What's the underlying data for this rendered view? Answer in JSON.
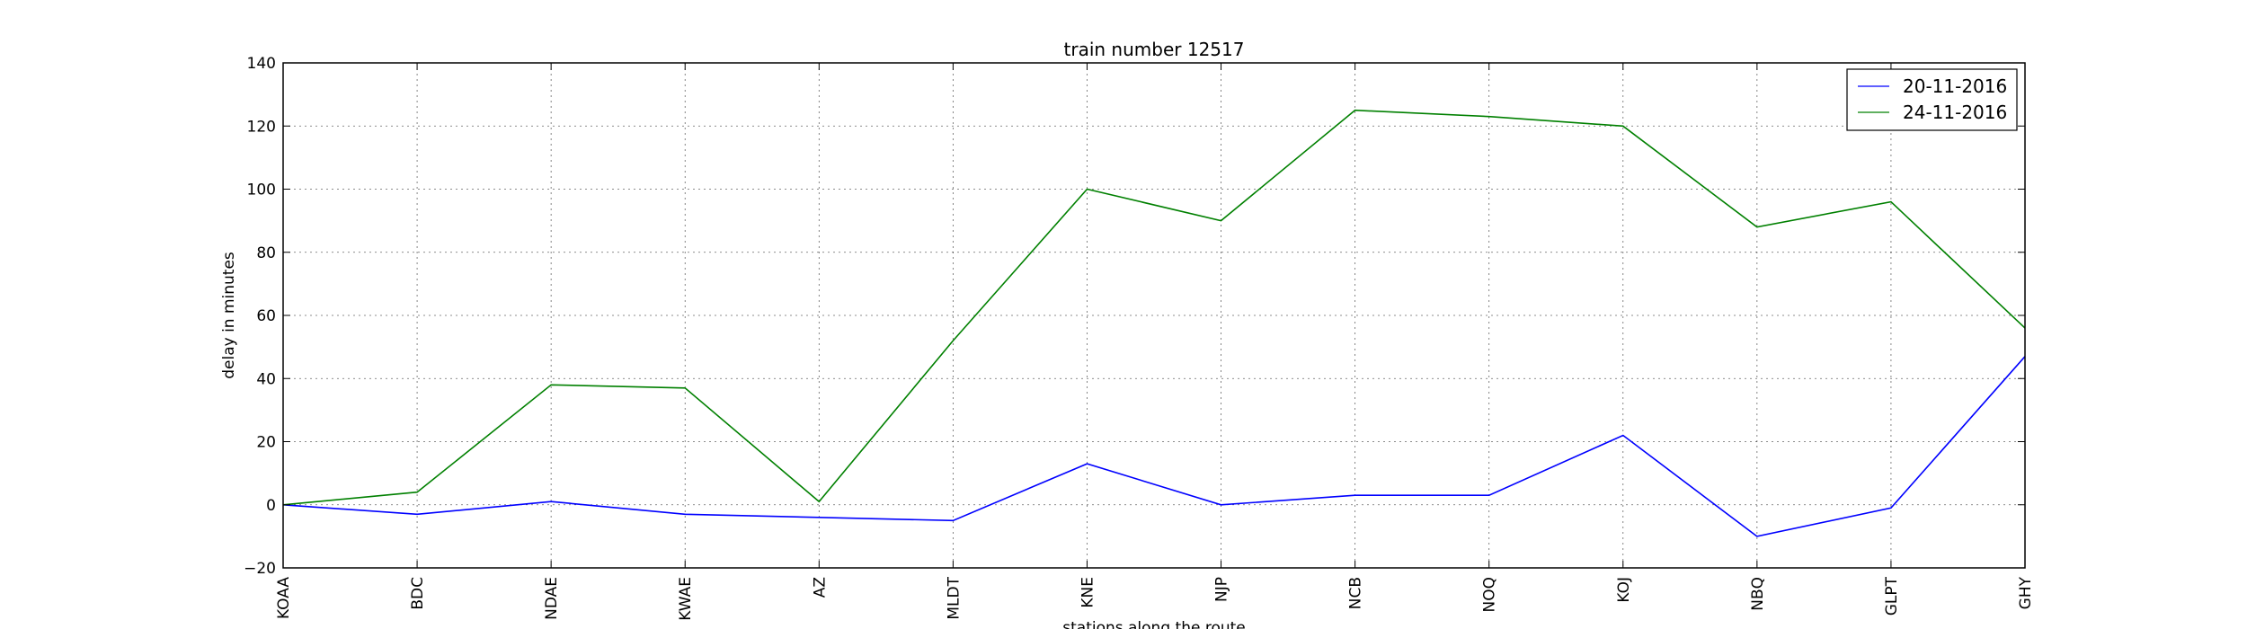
{
  "chart_data": {
    "type": "line",
    "title": "train number 12517",
    "xlabel": "stations along the route",
    "ylabel": "delay in minutes",
    "categories": [
      "KOAA",
      "BDC",
      "NDAE",
      "KWAE",
      "AZ",
      "MLDT",
      "KNE",
      "NJP",
      "NCB",
      "NOQ",
      "KOJ",
      "NBQ",
      "GLPT",
      "GHY"
    ],
    "ylim": [
      -20,
      140
    ],
    "yticks": [
      "-20",
      "0",
      "20",
      "40",
      "60",
      "80",
      "100",
      "120",
      "140"
    ],
    "grid": true,
    "legend_position": "top-right",
    "series": [
      {
        "name": "20-11-2016",
        "color": "#0000ff",
        "values": [
          0,
          -3,
          1,
          -3,
          -4,
          -5,
          13,
          0,
          3,
          3,
          22,
          -10,
          -1,
          47
        ]
      },
      {
        "name": "24-11-2016",
        "color": "#008000",
        "values": [
          0,
          4,
          38,
          37,
          1,
          52,
          100,
          90,
          125,
          123,
          120,
          88,
          96,
          56
        ]
      }
    ]
  }
}
